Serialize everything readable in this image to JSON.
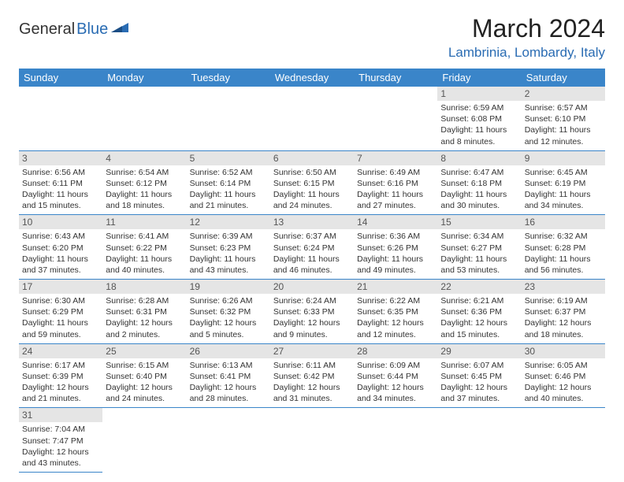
{
  "logo": {
    "main": "General",
    "sub": "Blue"
  },
  "title": "March 2024",
  "location": "Lambrinia, Lombardy, Italy",
  "colors": {
    "brand": "#3a85c9",
    "link": "#2a6cb3",
    "daynum_bg": "#e5e5e5"
  },
  "day_names": [
    "Sunday",
    "Monday",
    "Tuesday",
    "Wednesday",
    "Thursday",
    "Friday",
    "Saturday"
  ],
  "weeks": [
    [
      null,
      null,
      null,
      null,
      null,
      {
        "n": "1",
        "sr": "6:59 AM",
        "ss": "6:08 PM",
        "dl": "11 hours and 8 minutes."
      },
      {
        "n": "2",
        "sr": "6:57 AM",
        "ss": "6:10 PM",
        "dl": "11 hours and 12 minutes."
      }
    ],
    [
      {
        "n": "3",
        "sr": "6:56 AM",
        "ss": "6:11 PM",
        "dl": "11 hours and 15 minutes."
      },
      {
        "n": "4",
        "sr": "6:54 AM",
        "ss": "6:12 PM",
        "dl": "11 hours and 18 minutes."
      },
      {
        "n": "5",
        "sr": "6:52 AM",
        "ss": "6:14 PM",
        "dl": "11 hours and 21 minutes."
      },
      {
        "n": "6",
        "sr": "6:50 AM",
        "ss": "6:15 PM",
        "dl": "11 hours and 24 minutes."
      },
      {
        "n": "7",
        "sr": "6:49 AM",
        "ss": "6:16 PM",
        "dl": "11 hours and 27 minutes."
      },
      {
        "n": "8",
        "sr": "6:47 AM",
        "ss": "6:18 PM",
        "dl": "11 hours and 30 minutes."
      },
      {
        "n": "9",
        "sr": "6:45 AM",
        "ss": "6:19 PM",
        "dl": "11 hours and 34 minutes."
      }
    ],
    [
      {
        "n": "10",
        "sr": "6:43 AM",
        "ss": "6:20 PM",
        "dl": "11 hours and 37 minutes."
      },
      {
        "n": "11",
        "sr": "6:41 AM",
        "ss": "6:22 PM",
        "dl": "11 hours and 40 minutes."
      },
      {
        "n": "12",
        "sr": "6:39 AM",
        "ss": "6:23 PM",
        "dl": "11 hours and 43 minutes."
      },
      {
        "n": "13",
        "sr": "6:37 AM",
        "ss": "6:24 PM",
        "dl": "11 hours and 46 minutes."
      },
      {
        "n": "14",
        "sr": "6:36 AM",
        "ss": "6:26 PM",
        "dl": "11 hours and 49 minutes."
      },
      {
        "n": "15",
        "sr": "6:34 AM",
        "ss": "6:27 PM",
        "dl": "11 hours and 53 minutes."
      },
      {
        "n": "16",
        "sr": "6:32 AM",
        "ss": "6:28 PM",
        "dl": "11 hours and 56 minutes."
      }
    ],
    [
      {
        "n": "17",
        "sr": "6:30 AM",
        "ss": "6:29 PM",
        "dl": "11 hours and 59 minutes."
      },
      {
        "n": "18",
        "sr": "6:28 AM",
        "ss": "6:31 PM",
        "dl": "12 hours and 2 minutes."
      },
      {
        "n": "19",
        "sr": "6:26 AM",
        "ss": "6:32 PM",
        "dl": "12 hours and 5 minutes."
      },
      {
        "n": "20",
        "sr": "6:24 AM",
        "ss": "6:33 PM",
        "dl": "12 hours and 9 minutes."
      },
      {
        "n": "21",
        "sr": "6:22 AM",
        "ss": "6:35 PM",
        "dl": "12 hours and 12 minutes."
      },
      {
        "n": "22",
        "sr": "6:21 AM",
        "ss": "6:36 PM",
        "dl": "12 hours and 15 minutes."
      },
      {
        "n": "23",
        "sr": "6:19 AM",
        "ss": "6:37 PM",
        "dl": "12 hours and 18 minutes."
      }
    ],
    [
      {
        "n": "24",
        "sr": "6:17 AM",
        "ss": "6:39 PM",
        "dl": "12 hours and 21 minutes."
      },
      {
        "n": "25",
        "sr": "6:15 AM",
        "ss": "6:40 PM",
        "dl": "12 hours and 24 minutes."
      },
      {
        "n": "26",
        "sr": "6:13 AM",
        "ss": "6:41 PM",
        "dl": "12 hours and 28 minutes."
      },
      {
        "n": "27",
        "sr": "6:11 AM",
        "ss": "6:42 PM",
        "dl": "12 hours and 31 minutes."
      },
      {
        "n": "28",
        "sr": "6:09 AM",
        "ss": "6:44 PM",
        "dl": "12 hours and 34 minutes."
      },
      {
        "n": "29",
        "sr": "6:07 AM",
        "ss": "6:45 PM",
        "dl": "12 hours and 37 minutes."
      },
      {
        "n": "30",
        "sr": "6:05 AM",
        "ss": "6:46 PM",
        "dl": "12 hours and 40 minutes."
      }
    ],
    [
      {
        "n": "31",
        "sr": "7:04 AM",
        "ss": "7:47 PM",
        "dl": "12 hours and 43 minutes."
      },
      null,
      null,
      null,
      null,
      null,
      null
    ]
  ],
  "labels": {
    "sunrise": "Sunrise: ",
    "sunset": "Sunset: ",
    "daylight": "Daylight: "
  }
}
